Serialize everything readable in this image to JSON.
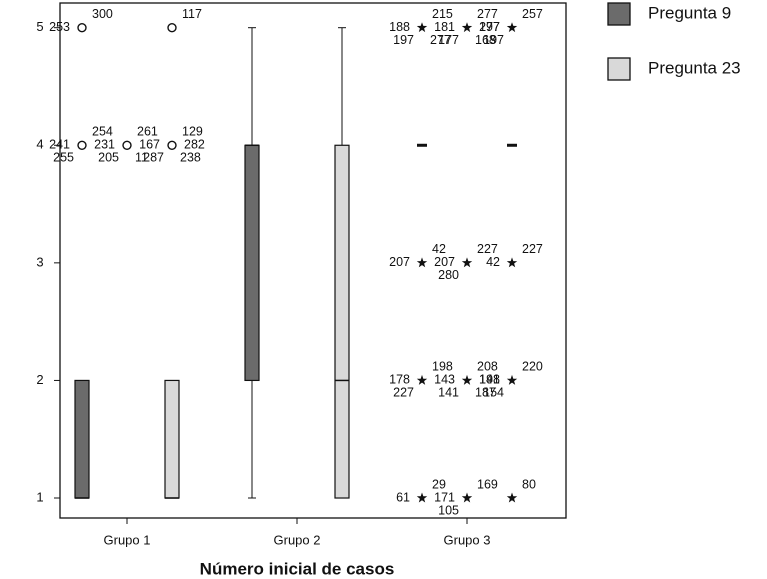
{
  "chart_data": {
    "type": "boxplot",
    "categories": [
      "Grupo 1",
      "Grupo 2",
      "Grupo 3"
    ],
    "x_label": "Número inicial de casos",
    "ylim": [
      0.83,
      5.21
    ],
    "yticks": [
      1,
      2,
      3,
      4,
      5
    ],
    "legend": "right",
    "series": [
      {
        "name": "Pregunta 9",
        "color": "#6b6b6b",
        "boxes": [
          {
            "min": 1,
            "q1": 1,
            "median": 1,
            "q3": 2,
            "max": 2,
            "outliers": [
              {
                "value": 4,
                "marker": "circle",
                "labels": [
                  "254",
                  "241",
                  "255"
                ]
              },
              {
                "value": 4,
                "marker": "circle",
                "labels": [
                  "261",
                  "231",
                  "205",
                  "11"
                ]
              },
              {
                "value": 5,
                "marker": "circle",
                "labels": [
                  "300",
                  "253"
                ]
              }
            ]
          },
          {
            "min": 1,
            "q1": 2,
            "median": 4,
            "q3": 4,
            "max": 5,
            "outliers": []
          },
          {
            "min": 4,
            "q1": 4,
            "median": 4,
            "q3": 4,
            "max": 4,
            "outliers": [
              {
                "value": 5,
                "marker": "star",
                "labels": [
                  "215",
                  "188",
                  "197",
                  "277"
                ]
              },
              {
                "value": 5,
                "marker": "star",
                "labels": [
                  "277",
                  "181",
                  "177",
                  "168",
                  "197"
                ]
              },
              {
                "value": 3,
                "marker": "star",
                "labels": [
                  "42",
                  "207"
                ]
              },
              {
                "value": 3,
                "marker": "star",
                "labels": [
                  "227",
                  "207",
                  "280"
                ]
              },
              {
                "value": 2,
                "marker": "star",
                "labels": [
                  "198",
                  "178",
                  "227"
                ]
              },
              {
                "value": 2,
                "marker": "star",
                "labels": [
                  "208",
                  "143",
                  "141",
                  "187",
                  "141"
                ]
              },
              {
                "value": 1,
                "marker": "star",
                "labels": [
                  "29",
                  "61"
                ]
              },
              {
                "value": 1,
                "marker": "star",
                "labels": [
                  "169",
                  "171",
                  "105"
                ]
              }
            ]
          }
        ]
      },
      {
        "name": "Pregunta 23",
        "color": "#d9d9d9",
        "boxes": [
          {
            "min": 1,
            "q1": 1,
            "median": 1,
            "q3": 2,
            "max": 2,
            "outliers": [
              {
                "value": 5,
                "marker": "circle",
                "labels": [
                  "117"
                ]
              },
              {
                "value": 4,
                "marker": "circle",
                "labels": [
                  "129",
                  "167",
                  "287",
                  "238",
                  "282"
                ]
              }
            ]
          },
          {
            "min": 1,
            "q1": 1,
            "median": 2,
            "q3": 4,
            "max": 5,
            "outliers": []
          },
          {
            "min": 4,
            "q1": 4,
            "median": 4,
            "q3": 4,
            "max": 4,
            "outliers": [
              {
                "value": 5,
                "marker": "star",
                "labels": [
                  "257",
                  "277",
                  "197"
                ]
              },
              {
                "value": 3,
                "marker": "star",
                "labels": [
                  "227",
                  "42"
                ]
              },
              {
                "value": 2,
                "marker": "star",
                "labels": [
                  "220",
                  "198",
                  "154"
                ]
              },
              {
                "value": 1,
                "marker": "star",
                "labels": [
                  "80"
                ]
              }
            ]
          }
        ]
      }
    ]
  }
}
